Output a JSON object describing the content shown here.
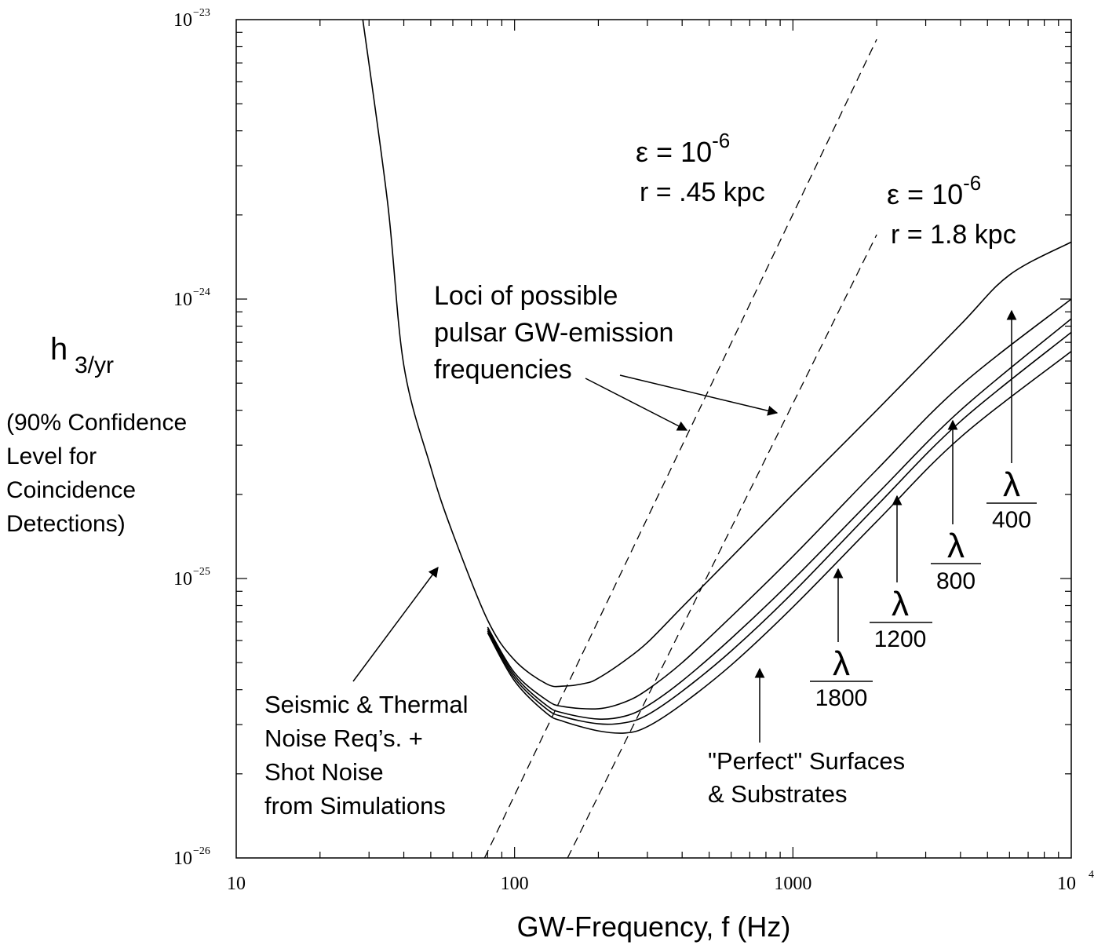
{
  "chart_data": {
    "type": "line",
    "xscale": "log",
    "yscale": "log",
    "xlim": [
      10,
      10000
    ],
    "ylim": [
      1e-26,
      1e-23
    ],
    "xlabel": "GW-Frequency, f (Hz)",
    "ylabel": {
      "symbol": "h",
      "subscript": "3/yr",
      "description": [
        "(90% Confidence",
        "Level for",
        "Coincidence",
        "Detections)"
      ]
    },
    "x_ticks": [
      {
        "value": 10,
        "label": "10"
      },
      {
        "value": 100,
        "label": "100"
      },
      {
        "value": 1000,
        "label": "1000"
      },
      {
        "value": 10000,
        "label": "10",
        "exponent": "4"
      }
    ],
    "y_ticks": [
      {
        "value": 1e-23,
        "base": "10",
        "exponent": "−23"
      },
      {
        "value": 1e-24,
        "base": "10",
        "exponent": "−24"
      },
      {
        "value": 1e-25,
        "base": "10",
        "exponent": "−25"
      },
      {
        "value": 1e-26,
        "base": "10",
        "exponent": "−26"
      }
    ],
    "grid": false,
    "noise_curves": [
      {
        "label_text": "λ",
        "label_denom": "400",
        "x": [
          28.5,
          35,
          40,
          50,
          60,
          80,
          100,
          130,
          150,
          180,
          200,
          250,
          300,
          400,
          600,
          1000,
          2000,
          4000,
          6000,
          10000
        ],
        "y": [
          1e-23,
          2.2e-24,
          5.8e-25,
          2.5e-25,
          1.45e-25,
          7.1e-26,
          5.1e-26,
          4.2e-26,
          4.12e-26,
          4.22e-26,
          4.4e-26,
          5.1e-26,
          5.9e-26,
          7.9e-26,
          1.19e-25,
          2e-25,
          4e-25,
          8.1e-25,
          1.22e-24,
          1.6e-24
        ]
      },
      {
        "label_text": "λ",
        "label_denom": "800",
        "x": [
          80,
          100,
          130,
          150,
          200,
          250,
          300,
          400,
          600,
          1000,
          2000,
          4000,
          10000
        ],
        "y": [
          6.7e-26,
          4.6e-26,
          3.68e-26,
          3.48e-26,
          3.42e-26,
          3.62e-26,
          4e-26,
          5e-26,
          7.3e-26,
          1.2e-25,
          2.45e-25,
          4.9e-25,
          1e-24
        ]
      },
      {
        "label_text": "λ",
        "label_denom": "1200",
        "x": [
          80,
          100,
          130,
          150,
          200,
          250,
          300,
          400,
          600,
          1000,
          2000,
          4000,
          10000
        ],
        "y": [
          6.6e-26,
          4.5e-26,
          3.52e-26,
          3.3e-26,
          3.14e-26,
          3.22e-26,
          3.5e-26,
          4.3e-26,
          6.1e-26,
          9.9e-26,
          2e-25,
          4e-25,
          8.5e-25
        ]
      },
      {
        "label_text": "λ",
        "label_denom": "1800",
        "x": [
          80,
          100,
          130,
          150,
          200,
          250,
          300,
          400,
          600,
          1000,
          2000,
          4000,
          10000
        ],
        "y": [
          6.5e-26,
          4.4e-26,
          3.42e-26,
          3.2e-26,
          3.02e-26,
          3.05e-26,
          3.25e-26,
          3.95e-26,
          5.5e-26,
          8.9e-26,
          1.82e-25,
          3.65e-25,
          7.6e-25
        ]
      },
      {
        "label_text": "\"Perfect\" Surfaces & Substrates",
        "x": [
          80,
          100,
          130,
          150,
          200,
          250,
          300,
          400,
          600,
          1000,
          2000,
          4000,
          10000
        ],
        "y": [
          6.4e-26,
          4.3e-26,
          3.3e-26,
          3.08e-26,
          2.85e-26,
          2.8e-26,
          2.95e-26,
          3.55e-26,
          4.9e-26,
          7.9e-26,
          1.6e-25,
          3.2e-25,
          6.5e-25
        ]
      }
    ],
    "pulsar_loci": [
      {
        "label_line1": "ε = 10",
        "label_exp": "-6",
        "label_line2": "r = .45 kpc",
        "x": [
          78,
          2000
        ],
        "y": [
          1e-26,
          8.5e-24
        ]
      },
      {
        "label_line1": "ε = 10",
        "label_exp": "-6",
        "label_line2": "r = 1.8 kpc",
        "x": [
          155,
          2000
        ],
        "y": [
          1e-26,
          1.7e-24
        ]
      }
    ],
    "annotations": {
      "loci": [
        "Loci of possible",
        "pulsar GW-emission",
        "frequencies"
      ],
      "seismic": [
        "Seismic & Thermal",
        "Noise Req’s. +",
        "Shot Noise",
        "from Simulations"
      ],
      "perfect": [
        "\"Perfect\" Surfaces",
        "& Substrates"
      ]
    }
  }
}
